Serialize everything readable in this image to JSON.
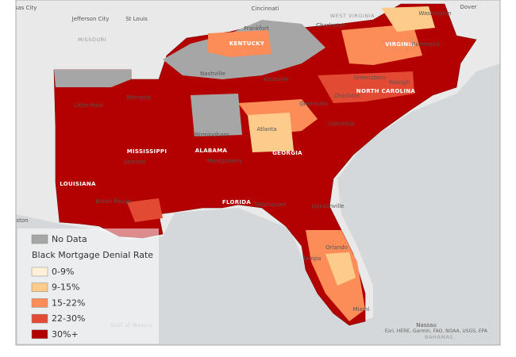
{
  "places": [
    {
      "label": "Kansas City",
      "kind": "city"
    },
    {
      "label": "Jefferson City",
      "kind": "city"
    },
    {
      "label": "St Louis",
      "kind": "city"
    },
    {
      "label": "MISSOURI",
      "kind": "faint"
    },
    {
      "label": "Cincinnati",
      "kind": "city"
    },
    {
      "label": "WEST VIRGINIA",
      "kind": "faint"
    },
    {
      "label": "Charleston",
      "kind": "city"
    },
    {
      "label": "Washington",
      "kind": "city"
    },
    {
      "label": "Dover",
      "kind": "city"
    },
    {
      "label": "Frankfort",
      "kind": "city"
    },
    {
      "label": "KENTUCKY",
      "kind": "state"
    },
    {
      "label": "VIRGINIA",
      "kind": "state"
    },
    {
      "label": "Richmond",
      "kind": "city"
    },
    {
      "label": "Nashville",
      "kind": "city"
    },
    {
      "label": "Knoxville",
      "kind": "city"
    },
    {
      "label": "Greensboro",
      "kind": "city"
    },
    {
      "label": "Raleigh",
      "kind": "city"
    },
    {
      "label": "NORTH CAROLINA",
      "kind": "state"
    },
    {
      "label": "Little Rock",
      "kind": "city"
    },
    {
      "label": "Memphis",
      "kind": "city"
    },
    {
      "label": "Charlotte",
      "kind": "city"
    },
    {
      "label": "Greenville",
      "kind": "city"
    },
    {
      "label": "Atlanta",
      "kind": "city"
    },
    {
      "label": "Columbia",
      "kind": "city"
    },
    {
      "label": "MISSISSIPPI",
      "kind": "state"
    },
    {
      "label": "Birmingham",
      "kind": "city"
    },
    {
      "label": "ALABAMA",
      "kind": "state"
    },
    {
      "label": "Jackson",
      "kind": "city"
    },
    {
      "label": "Montgomery",
      "kind": "city"
    },
    {
      "label": "GEORGIA",
      "kind": "state"
    },
    {
      "label": "LOUISIANA",
      "kind": "state"
    },
    {
      "label": "Baton Rouge",
      "kind": "city"
    },
    {
      "label": "FLORIDA",
      "kind": "state"
    },
    {
      "label": "Tallahassee",
      "kind": "city"
    },
    {
      "label": "Jacksonville",
      "kind": "city"
    },
    {
      "label": "Tampa",
      "kind": "city"
    },
    {
      "label": "Orlando",
      "kind": "city"
    },
    {
      "label": "Miami",
      "kind": "city"
    },
    {
      "label": "Gulf of Mexico",
      "kind": "faint"
    },
    {
      "label": "Nassau",
      "kind": "city"
    },
    {
      "label": "BAHAMAS",
      "kind": "faint"
    },
    {
      "label": "ston",
      "kind": "city"
    }
  ],
  "legend": {
    "no_data": {
      "label": "No Data",
      "color": "#a6a6a6"
    },
    "title": "Black Mortgage Denial Rate",
    "items": [
      {
        "label": "0-9%",
        "color": "#fef0d9"
      },
      {
        "label": "9-15%",
        "color": "#fdcc8a"
      },
      {
        "label": "15-22%",
        "color": "#fc8d59"
      },
      {
        "label": "22-30%",
        "color": "#e34a33"
      },
      {
        "label": "30%+",
        "color": "#b30000"
      }
    ]
  },
  "attribution": "Esri, HERE, Garmin, FAO, NOAA, USGS, EPA"
}
